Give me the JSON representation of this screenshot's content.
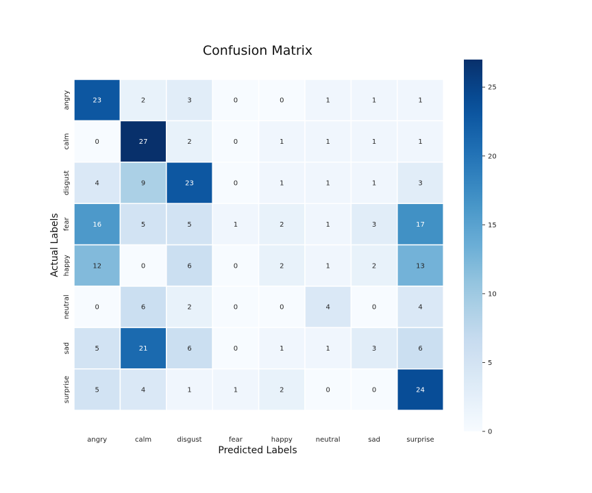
{
  "chart_data": {
    "type": "heatmap",
    "title": "Confusion Matrix",
    "xlabel": "Predicted Labels",
    "ylabel": "Actual Labels",
    "x_categories": [
      "angry",
      "calm",
      "disgust",
      "fear",
      "happy",
      "neutral",
      "sad",
      "surprise"
    ],
    "y_categories": [
      "angry",
      "calm",
      "disgust",
      "fear",
      "happy",
      "neutral",
      "sad",
      "surprise"
    ],
    "values": [
      [
        23,
        2,
        3,
        0,
        0,
        1,
        1,
        1
      ],
      [
        0,
        27,
        2,
        0,
        1,
        1,
        1,
        1
      ],
      [
        4,
        9,
        23,
        0,
        1,
        1,
        1,
        3
      ],
      [
        16,
        5,
        5,
        1,
        2,
        1,
        3,
        17
      ],
      [
        12,
        0,
        6,
        0,
        2,
        1,
        2,
        13
      ],
      [
        0,
        6,
        2,
        0,
        0,
        4,
        0,
        4
      ],
      [
        5,
        21,
        6,
        0,
        1,
        1,
        3,
        6
      ],
      [
        5,
        4,
        1,
        1,
        2,
        0,
        0,
        24
      ]
    ],
    "colormap": "Blues",
    "colorbar": {
      "min": 0,
      "max": 27,
      "ticks": [
        0,
        5,
        10,
        15,
        20,
        25
      ]
    },
    "annotations": true
  }
}
